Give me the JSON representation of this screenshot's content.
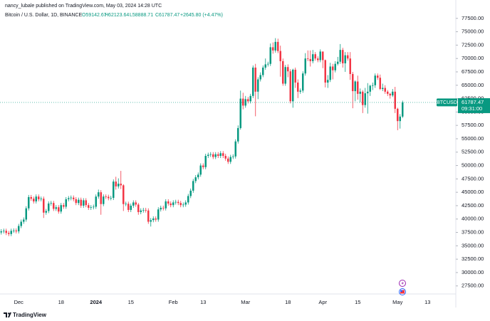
{
  "header": {
    "published": "nancy_lubale published on TradingView.com, May 03, 2024 14:28 UTC",
    "symbol": "Bitcoin / U.S. Dollar, 1D, BINANCE",
    "open": "O59142.67",
    "high": "H62123.64",
    "low": "L58888.71",
    "close": "C61787.47",
    "change": "+2645.80 (+4.47%)"
  },
  "footer": {
    "brand": "TradingView"
  },
  "chart_data": {
    "type": "candlestick",
    "up_color": "#089981",
    "down_color": "#f23645",
    "grid": false,
    "price_tag": {
      "symbol": "BTCUSD",
      "countdown": "09:31:00"
    },
    "ylim": [
      26000,
      80000
    ],
    "yticks": [
      {
        "value": 27500,
        "label": "27500.00"
      },
      {
        "value": 30000,
        "label": "30000.00"
      },
      {
        "value": 32500,
        "label": "32500.00"
      },
      {
        "value": 35000,
        "label": "35000.00"
      },
      {
        "value": 37500,
        "label": "37500.00"
      },
      {
        "value": 40000,
        "label": "40000.00"
      },
      {
        "value": 42500,
        "label": "42500.00"
      },
      {
        "value": 45000,
        "label": "45000.00"
      },
      {
        "value": 47500,
        "label": "47500.00"
      },
      {
        "value": 50000,
        "label": "50000.00"
      },
      {
        "value": 52500,
        "label": "52500.00"
      },
      {
        "value": 55000,
        "label": "55000.00"
      },
      {
        "value": 57500,
        "label": "57500.00"
      },
      {
        "value": 60000,
        "label": "60000.00"
      },
      {
        "value": 62500,
        "label": "62500.00"
      },
      {
        "value": 65000,
        "label": "65000.00"
      },
      {
        "value": 67500,
        "label": "67500.00"
      },
      {
        "value": 70000,
        "label": "70000.00"
      },
      {
        "value": 72500,
        "label": "72500.00"
      },
      {
        "value": 75000,
        "label": "75000.00"
      },
      {
        "value": 77500,
        "label": "77500.00"
      }
    ],
    "categories": [
      null,
      null,
      null,
      null,
      null,
      null,
      null,
      "Dec",
      null,
      null,
      null,
      null,
      null,
      null,
      null,
      null,
      null,
      null,
      null,
      null,
      null,
      null,
      null,
      null,
      "18",
      null,
      null,
      null,
      null,
      null,
      null,
      null,
      null,
      null,
      null,
      null,
      null,
      null,
      "2024",
      null,
      null,
      null,
      null,
      null,
      null,
      null,
      null,
      null,
      null,
      null,
      null,
      null,
      "15",
      null,
      null,
      null,
      null,
      null,
      null,
      null,
      null,
      null,
      null,
      null,
      null,
      null,
      null,
      null,
      null,
      "Feb",
      null,
      null,
      null,
      null,
      null,
      null,
      null,
      null,
      null,
      null,
      null,
      "13",
      null,
      null,
      null,
      null,
      null,
      null,
      null,
      null,
      null,
      null,
      null,
      null,
      null,
      null,
      null,
      null,
      "Mar",
      null,
      null,
      null,
      null,
      null,
      null,
      null,
      null,
      null,
      null,
      null,
      null,
      null,
      null,
      null,
      null,
      "18",
      null,
      null,
      null,
      null,
      null,
      null,
      null,
      null,
      null,
      null,
      null,
      null,
      null,
      "Apr",
      null,
      null,
      null,
      null,
      null,
      null,
      null,
      null,
      null,
      null,
      null,
      null,
      null,
      "15",
      null,
      null,
      null,
      null,
      null,
      null,
      null,
      null,
      null,
      null,
      null,
      null,
      null,
      null,
      null,
      "May",
      null,
      null,
      null,
      null,
      null,
      null,
      null,
      null,
      null,
      null,
      null,
      "13",
      null,
      null,
      null
    ],
    "open": [
      37500,
      37700,
      37800,
      37400,
      37200,
      37800,
      37850,
      37700,
      38700,
      39500,
      39900,
      42000,
      44100,
      43800,
      43300,
      44200,
      43700,
      43800,
      41200,
      41500,
      42900,
      43000,
      41900,
      42200,
      41400,
      42600,
      42300,
      43700,
      43900,
      44000,
      43700,
      43000,
      43600,
      42500,
      43500,
      42600,
      42100,
      42200,
      42300,
      44200,
      45000,
      42800,
      44200,
      44150,
      43900,
      43950,
      47000,
      46100,
      46600,
      46300,
      42800,
      42850,
      41700,
      42500,
      43100,
      42700,
      41300,
      41600,
      41700,
      41600,
      39500,
      39800,
      40100,
      39900,
      41800,
      42100,
      42000,
      43300,
      42900,
      42600,
      43100,
      43200,
      43000,
      42600,
      42700,
      43100,
      44300,
      45300,
      47100,
      47800,
      48300,
      50000,
      49700,
      51800,
      52000,
      52100,
      51600,
      52100,
      51800,
      52300,
      51800,
      51300,
      50700,
      51600,
      51700,
      54500,
      57000,
      62500,
      61200,
      62400,
      62000,
      63000,
      68300,
      63800,
      66100,
      66900,
      68300,
      68900,
      69000,
      72100,
      71500,
      73100,
      71400,
      69500,
      65300,
      68400,
      67600,
      62000,
      67900,
      65500,
      63800,
      64000,
      67200,
      70000,
      69900,
      69500,
      70800,
      70000,
      69700,
      71300,
      69700,
      65500,
      66000,
      68500,
      67800,
      69000,
      69400,
      71600,
      69100,
      70600,
      70000,
      67100,
      63900,
      65700,
      63400,
      63800,
      61300,
      63500,
      63800,
      64900,
      65000,
      66800,
      66400,
      64300,
      64500,
      63800,
      63400,
      63100,
      63800,
      60600,
      58300,
      59142.67,
      null,
      null,
      null,
      null,
      null,
      null,
      null,
      null,
      null,
      null,
      null,
      null,
      null
    ],
    "high": [
      38100,
      38200,
      38200,
      37800,
      38200,
      38250,
      38250,
      39100,
      39900,
      40300,
      42400,
      44500,
      44500,
      44200,
      44600,
      44600,
      44200,
      44200,
      41900,
      43300,
      43400,
      43400,
      42600,
      42600,
      43000,
      43000,
      44100,
      44300,
      44400,
      44400,
      44100,
      44000,
      44000,
      43900,
      43900,
      43000,
      42600,
      42700,
      44600,
      45500,
      45400,
      44600,
      44600,
      44550,
      44350,
      47400,
      47900,
      47600,
      49000,
      46500,
      43250,
      43250,
      42900,
      43500,
      43500,
      43000,
      42000,
      42100,
      42100,
      42000,
      40200,
      40500,
      40500,
      42200,
      42500,
      42500,
      43700,
      43700,
      43300,
      43500,
      43600,
      43600,
      43400,
      43100,
      43500,
      44700,
      45700,
      47500,
      48200,
      48700,
      50400,
      50400,
      52200,
      52400,
      52500,
      52500,
      52500,
      52500,
      52700,
      52700,
      52200,
      51700,
      52000,
      52100,
      54900,
      57500,
      64000,
      63600,
      63000,
      62800,
      63400,
      68700,
      69000,
      66500,
      67400,
      68700,
      70000,
      69400,
      72800,
      73000,
      73800,
      73700,
      72400,
      70000,
      68800,
      68900,
      68000,
      68100,
      68300,
      66100,
      64400,
      67600,
      71000,
      71500,
      71500,
      71600,
      71200,
      70400,
      71700,
      71300,
      69800,
      66900,
      69200,
      69000,
      69500,
      70300,
      72700,
      72000,
      71200,
      71200,
      71200,
      67500,
      65900,
      66800,
      64400,
      64100,
      64500,
      65400,
      65100,
      65500,
      67200,
      67200,
      67000,
      65300,
      65000,
      64100,
      63600,
      64300,
      64700,
      60800,
      59600,
      62123.64,
      null,
      null,
      null,
      null,
      null,
      null,
      null,
      null,
      null,
      null,
      null,
      null,
      null
    ],
    "low": [
      37100,
      37300,
      37000,
      36800,
      36800,
      37400,
      37300,
      37300,
      38300,
      39100,
      39500,
      41600,
      43400,
      42900,
      42900,
      43300,
      43300,
      40200,
      40800,
      41100,
      42500,
      41500,
      41500,
      41000,
      41000,
      41900,
      41900,
      43300,
      43500,
      43300,
      42600,
      42600,
      42100,
      42100,
      42200,
      41700,
      41700,
      41800,
      41900,
      43800,
      40800,
      42400,
      43750,
      43500,
      43500,
      43550,
      45500,
      45700,
      45600,
      41500,
      42400,
      41300,
      41300,
      42100,
      42300,
      40800,
      40900,
      41200,
      41200,
      39100,
      38600,
      39400,
      39500,
      39500,
      41400,
      41600,
      41600,
      42500,
      42200,
      42200,
      42700,
      42600,
      42200,
      42200,
      42300,
      42700,
      43900,
      44900,
      46700,
      47400,
      47900,
      49300,
      49300,
      51400,
      51600,
      51200,
      51200,
      51400,
      51400,
      51400,
      50900,
      50300,
      50300,
      51200,
      51300,
      54100,
      56700,
      60500,
      60800,
      61600,
      61600,
      62600,
      59200,
      62400,
      65700,
      66500,
      67900,
      68500,
      68600,
      70900,
      71100,
      71000,
      66600,
      64900,
      64900,
      66500,
      61600,
      60800,
      64500,
      62600,
      63400,
      63600,
      66800,
      69500,
      68500,
      69100,
      69600,
      69300,
      69300,
      68200,
      64600,
      64500,
      65600,
      66100,
      67400,
      68700,
      69000,
      68300,
      67500,
      69600,
      66000,
      60700,
      62000,
      62300,
      61800,
      59800,
      60800,
      59700,
      63000,
      64100,
      64500,
      66000,
      64100,
      63900,
      63400,
      63000,
      62500,
      62800,
      59800,
      56600,
      56900,
      58888.71,
      null,
      null,
      null,
      null,
      null,
      null,
      null,
      null,
      null,
      null,
      null,
      null,
      null
    ],
    "close": [
      37700,
      37800,
      37400,
      37200,
      37800,
      37850,
      37700,
      38700,
      39500,
      39900,
      42000,
      44100,
      43800,
      43300,
      44200,
      43700,
      43800,
      41200,
      41500,
      42900,
      43000,
      41900,
      42200,
      41400,
      42600,
      42300,
      43700,
      43900,
      44000,
      43700,
      43000,
      43600,
      42500,
      43500,
      42600,
      42100,
      42200,
      42300,
      44200,
      45000,
      42800,
      44200,
      44150,
      43900,
      43950,
      47000,
      46100,
      46600,
      46300,
      42800,
      42850,
      41700,
      42500,
      43100,
      42700,
      41300,
      41600,
      41700,
      41600,
      39500,
      39800,
      40100,
      39900,
      41800,
      42100,
      42000,
      43300,
      42900,
      42600,
      43100,
      43200,
      43000,
      42600,
      42700,
      43100,
      44300,
      45300,
      47100,
      47800,
      48300,
      50000,
      49700,
      51800,
      52000,
      52100,
      51600,
      52100,
      51800,
      52300,
      51800,
      51300,
      50700,
      51600,
      51700,
      54500,
      57000,
      62500,
      61200,
      62400,
      62000,
      63000,
      68300,
      63800,
      66100,
      66900,
      68300,
      68900,
      69000,
      72100,
      71500,
      73100,
      71400,
      69500,
      65300,
      68400,
      67600,
      62000,
      67900,
      65500,
      63800,
      64000,
      67200,
      70000,
      69900,
      69500,
      70800,
      70000,
      69700,
      71300,
      69700,
      65500,
      66000,
      68500,
      67800,
      69000,
      69400,
      71600,
      69100,
      70600,
      70000,
      67100,
      63900,
      65700,
      63400,
      63800,
      61300,
      63500,
      63800,
      64900,
      65000,
      66800,
      66400,
      64300,
      64500,
      63800,
      63400,
      63100,
      63800,
      60600,
      58300,
      59142.67,
      61787.47,
      null,
      null,
      null,
      null,
      null,
      null,
      null,
      null,
      null,
      null,
      null,
      null,
      null
    ]
  }
}
